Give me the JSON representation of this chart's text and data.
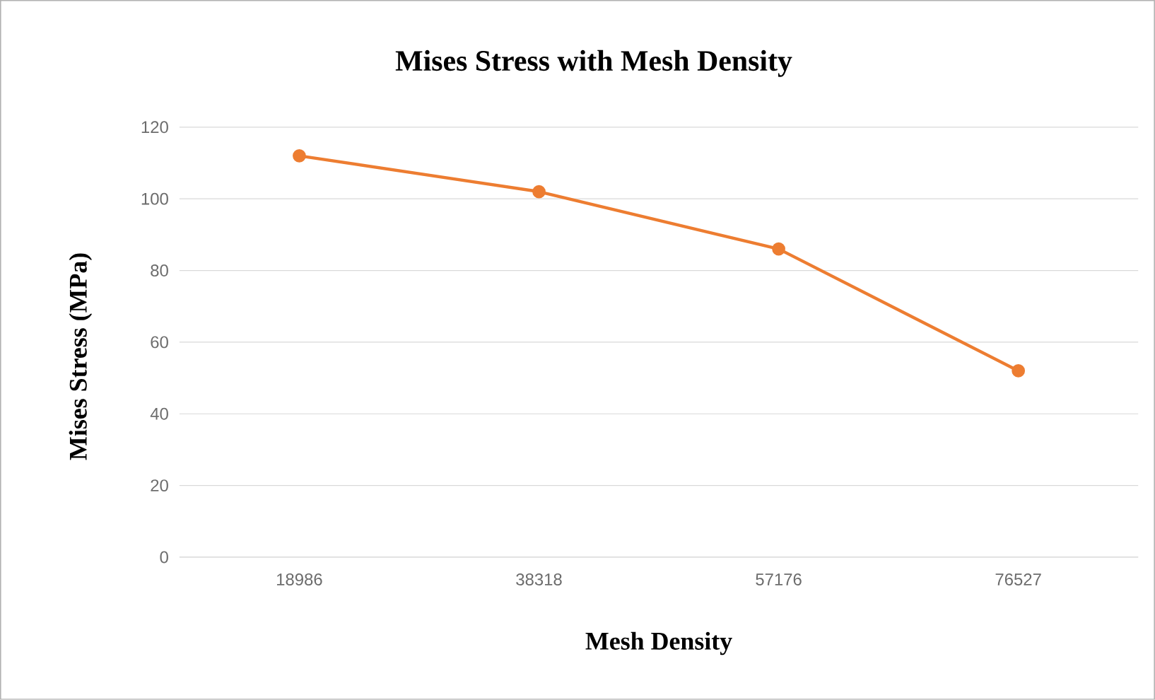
{
  "chart_data": {
    "type": "line",
    "title": "Mises Stress with Mesh Density",
    "xlabel": "Mesh Density",
    "ylabel": "Mises Stress (MPa)",
    "categories": [
      "18986",
      "38318",
      "57176",
      "76527"
    ],
    "series": [
      {
        "color": "#ed7d31",
        "values": [
          112,
          102,
          86,
          52
        ]
      }
    ],
    "ylim": [
      0,
      120
    ],
    "yticks": [
      0,
      20,
      40,
      60,
      80,
      100,
      120
    ],
    "grid": "y",
    "marker": "circle",
    "line_style": "solid"
  }
}
